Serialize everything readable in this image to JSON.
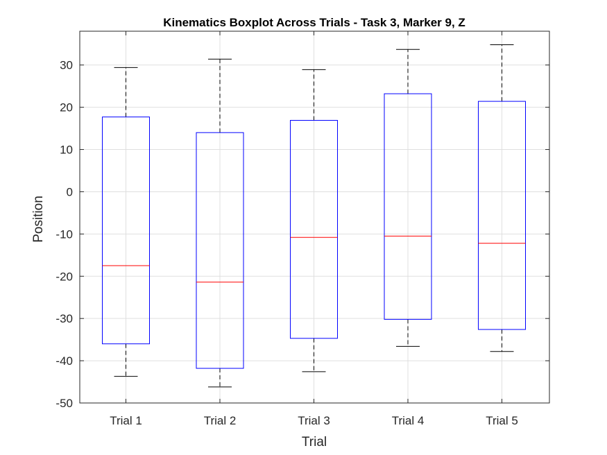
{
  "chart_data": {
    "type": "box",
    "title": "Kinematics Boxplot Across Trials - Task 3, Marker 9, Z",
    "xlabel": "Trial",
    "ylabel": "Position",
    "ylim": [
      -50,
      38
    ],
    "yticks": [
      -50,
      -40,
      -30,
      -20,
      -10,
      0,
      10,
      20,
      30
    ],
    "grid": true,
    "categories": [
      "Trial 1",
      "Trial 2",
      "Trial 3",
      "Trial 4",
      "Trial 5"
    ],
    "boxes": [
      {
        "whisker_low": -43.7,
        "q1": -36.0,
        "median": -17.5,
        "q3": 17.7,
        "whisker_high": 29.4
      },
      {
        "whisker_low": -46.2,
        "q1": -41.8,
        "median": -21.4,
        "q3": 14.0,
        "whisker_high": 31.4
      },
      {
        "whisker_low": -42.6,
        "q1": -34.7,
        "median": -10.8,
        "q3": 16.9,
        "whisker_high": 28.9
      },
      {
        "whisker_low": -36.6,
        "q1": -30.2,
        "median": -10.5,
        "q3": 23.2,
        "whisker_high": 33.7
      },
      {
        "whisker_low": -37.8,
        "q1": -32.6,
        "median": -12.2,
        "q3": 21.4,
        "whisker_high": 34.8
      }
    ],
    "colors": {
      "box": "#0000ff",
      "median": "#ff0000",
      "whisker": "#000000",
      "grid": "#dfdfdf",
      "axis": "#262626"
    }
  }
}
